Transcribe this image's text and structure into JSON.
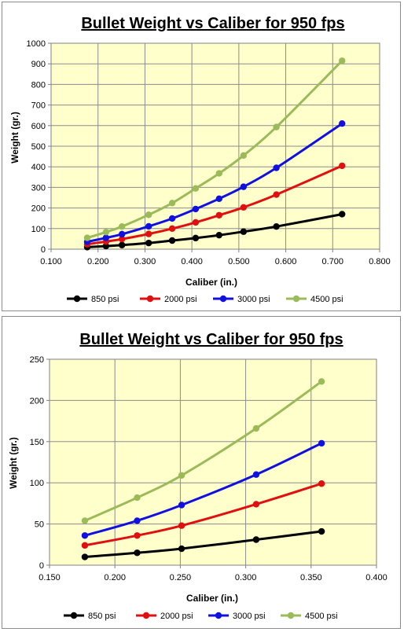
{
  "chart_data": [
    {
      "type": "line",
      "title": "Bullet Weight  vs Caliber for 950 fps",
      "xlabel": "Caliber (in.)",
      "ylabel": "Weight (gr.)",
      "xlim": [
        0.1,
        0.8
      ],
      "ylim": [
        0,
        1000
      ],
      "xticks": [
        "0.100",
        "0.200",
        "0.300",
        "0.400",
        "0.500",
        "0.600",
        "0.700",
        "0.800"
      ],
      "yticks": [
        "0",
        "100",
        "200",
        "300",
        "400",
        "500",
        "600",
        "700",
        "800",
        "900",
        "1000"
      ],
      "grid": true,
      "legend_position": "bottom",
      "background_color": "#FFFFCC",
      "x": [
        0.177,
        0.217,
        0.251,
        0.308,
        0.358,
        0.408,
        0.458,
        0.51,
        0.58,
        0.72
      ],
      "series": [
        {
          "name": "850 psi",
          "color": "#000000",
          "values": [
            10,
            15,
            20,
            30,
            42,
            54,
            68,
            85,
            110,
            170
          ]
        },
        {
          "name": "2000 psi",
          "color": "#E01010",
          "values": [
            24,
            37,
            49,
            74,
            100,
            130,
            165,
            203,
            265,
            405
          ]
        },
        {
          "name": "3000 psi",
          "color": "#1010E0",
          "values": [
            36,
            55,
            73,
            111,
            149,
            195,
            245,
            303,
            395,
            610
          ]
        },
        {
          "name": "4500 psi",
          "color": "#9BBB59",
          "values": [
            55,
            83,
            110,
            167,
            224,
            295,
            368,
            455,
            593,
            915
          ]
        }
      ]
    },
    {
      "type": "line",
      "title": "Bullet Weight  vs Caliber for 950 fps",
      "xlabel": "Caliber (in.)",
      "ylabel": "Weight (gr.)",
      "xlim": [
        0.15,
        0.4
      ],
      "ylim": [
        0,
        250
      ],
      "xticks": [
        "0.150",
        "0.200",
        "0.250",
        "0.300",
        "0.350",
        "0.400"
      ],
      "yticks": [
        "0",
        "50",
        "100",
        "150",
        "200",
        "250"
      ],
      "grid": true,
      "legend_position": "bottom",
      "background_color": "#FFFFCC",
      "x": [
        0.177,
        0.217,
        0.251,
        0.308,
        0.358
      ],
      "series": [
        {
          "name": "850 psi",
          "color": "#000000",
          "values": [
            10,
            15,
            20,
            31,
            41
          ]
        },
        {
          "name": "2000 psi",
          "color": "#E01010",
          "values": [
            24,
            36,
            48,
            74,
            99
          ]
        },
        {
          "name": "3000 psi",
          "color": "#1010E0",
          "values": [
            36,
            54,
            73,
            110,
            148
          ]
        },
        {
          "name": "4500 psi",
          "color": "#9BBB59",
          "values": [
            54,
            82,
            109,
            166,
            223
          ]
        }
      ]
    }
  ]
}
